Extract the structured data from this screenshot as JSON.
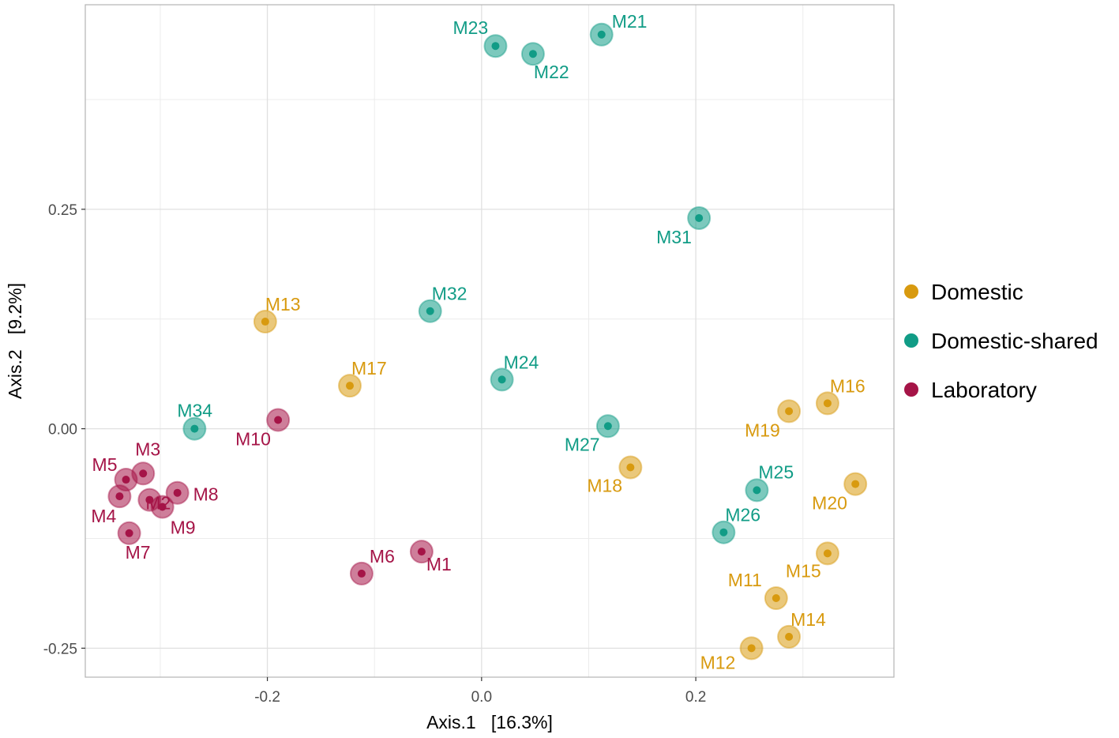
{
  "chart_data": {
    "type": "scatter",
    "title": "",
    "xlabel": "Axis.1   [16.3%]",
    "ylabel": "Axis.2   [9.2%]",
    "xlim": [
      -0.37,
      0.385
    ],
    "ylim": [
      -0.283,
      0.483
    ],
    "x_ticks": [
      -0.2,
      0.0,
      0.2
    ],
    "x_tick_labels": [
      "-0.2",
      "0.0",
      "0.2"
    ],
    "y_ticks": [
      -0.25,
      0.0,
      0.25
    ],
    "y_tick_labels": [
      "-0.25",
      "0.00",
      "0.25"
    ],
    "grid": true,
    "legend_position": "right",
    "legend": [
      {
        "name": "Domestic",
        "color": "#D89A0F"
      },
      {
        "name": "Domestic-shared",
        "color": "#119C86"
      },
      {
        "name": "Laboratory",
        "color": "#A51447"
      }
    ],
    "series": [
      {
        "name": "Domestic",
        "color": "#D89A0F",
        "points": [
          {
            "label": "M11",
            "x": 0.275,
            "y": -0.193
          },
          {
            "label": "M12",
            "x": 0.252,
            "y": -0.25
          },
          {
            "label": "M13",
            "x": -0.202,
            "y": 0.122
          },
          {
            "label": "M14",
            "x": 0.287,
            "y": -0.237
          },
          {
            "label": "M15",
            "x": 0.323,
            "y": -0.142
          },
          {
            "label": "M16",
            "x": 0.323,
            "y": 0.029
          },
          {
            "label": "M17",
            "x": -0.123,
            "y": 0.049
          },
          {
            "label": "M18",
            "x": 0.139,
            "y": -0.044
          },
          {
            "label": "M19",
            "x": 0.287,
            "y": 0.02
          },
          {
            "label": "M20",
            "x": 0.349,
            "y": -0.063
          }
        ]
      },
      {
        "name": "Domestic-shared",
        "color": "#119C86",
        "points": [
          {
            "label": "M21",
            "x": 0.112,
            "y": 0.449
          },
          {
            "label": "M22",
            "x": 0.048,
            "y": 0.427
          },
          {
            "label": "M23",
            "x": 0.013,
            "y": 0.436
          },
          {
            "label": "M24",
            "x": 0.019,
            "y": 0.056
          },
          {
            "label": "M25",
            "x": 0.257,
            "y": -0.07
          },
          {
            "label": "M26",
            "x": 0.226,
            "y": -0.118
          },
          {
            "label": "M27",
            "x": 0.118,
            "y": 0.003
          },
          {
            "label": "M31",
            "x": 0.203,
            "y": 0.24
          },
          {
            "label": "M32",
            "x": -0.048,
            "y": 0.134
          },
          {
            "label": "M34",
            "x": -0.268,
            "y": 0.0
          }
        ]
      },
      {
        "name": "Laboratory",
        "color": "#A51447",
        "points": [
          {
            "label": "M1",
            "x": -0.056,
            "y": -0.14
          },
          {
            "label": "M2",
            "x": -0.31,
            "y": -0.081
          },
          {
            "label": "M3",
            "x": -0.316,
            "y": -0.051
          },
          {
            "label": "M4",
            "x": -0.338,
            "y": -0.077
          },
          {
            "label": "M5",
            "x": -0.332,
            "y": -0.058
          },
          {
            "label": "M6",
            "x": -0.112,
            "y": -0.165
          },
          {
            "label": "M7",
            "x": -0.329,
            "y": -0.119
          },
          {
            "label": "M8",
            "x": -0.284,
            "y": -0.073
          },
          {
            "label": "M9",
            "x": -0.298,
            "y": -0.089
          },
          {
            "label": "M10",
            "x": -0.19,
            "y": 0.01
          }
        ]
      }
    ]
  }
}
